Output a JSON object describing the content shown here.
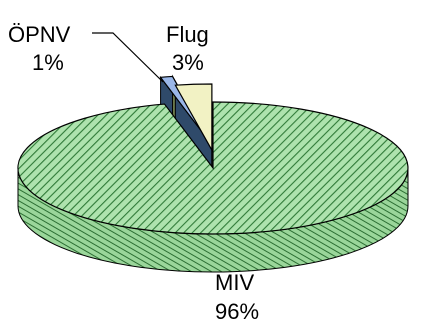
{
  "chart_data": {
    "type": "pie",
    "style": "3d-exploded",
    "slices": [
      {
        "name": "MIV",
        "value": 96,
        "label": "MIV",
        "pct_label": "96%",
        "color": "#8fd18f",
        "hatch": true
      },
      {
        "name": "ÖPNV",
        "value": 1,
        "label": "ÖPNV",
        "pct_label": "1%",
        "color": "#9ab7e8",
        "hatch": false
      },
      {
        "name": "Flug",
        "value": 3,
        "label": "Flug",
        "pct_label": "3%",
        "color": "#f2f2c4",
        "hatch": false
      }
    ],
    "legend": "none"
  }
}
